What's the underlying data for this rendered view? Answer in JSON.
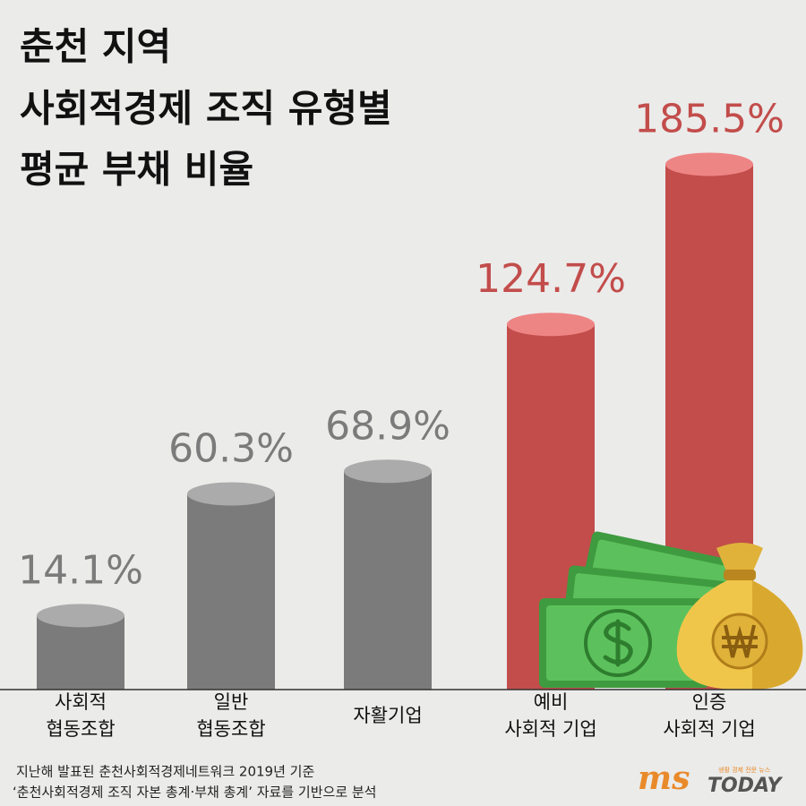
{
  "chart_data": {
    "type": "cylinder-bar",
    "title": [
      "춘천 지역",
      "사회적경제 조직 유형별",
      "평균 부채 비율"
    ],
    "categories": [
      [
        "사회적",
        "협동조합"
      ],
      [
        "일반",
        "협동조합"
      ],
      [
        "자활기업"
      ],
      [
        "예비",
        "사회적 기업"
      ],
      [
        "인증",
        "사회적 기업"
      ]
    ],
    "values": [
      14.1,
      60.3,
      68.9,
      124.7,
      185.5
    ],
    "value_labels": [
      "14.1%",
      "60.3%",
      "68.9%",
      "124.7%",
      "185.5%"
    ],
    "colors": [
      "#7b7b7b",
      "#7b7b7b",
      "#7b7b7b",
      "#c24d4b",
      "#c24d4b"
    ],
    "top_colors": [
      "#ababab",
      "#ababab",
      "#ababab",
      "#ee8585",
      "#ee8585"
    ],
    "label_colors": [
      "#7b7b7b",
      "#7b7b7b",
      "#7b7b7b",
      "#c24d4b",
      "#c24d4b"
    ],
    "ylim": [
      -14,
      186
    ]
  },
  "footnote": [
    "지난해 발표된 춘천사회적경제네트워크 2019년 기준",
    "‘춘천사회적경제 조직 자본 총계·부채 총계’ 자료를 기반으로 분석"
  ],
  "logo": {
    "brand": "ms",
    "name": "TODAY",
    "tagline": "생활 경제 전문 뉴스"
  }
}
